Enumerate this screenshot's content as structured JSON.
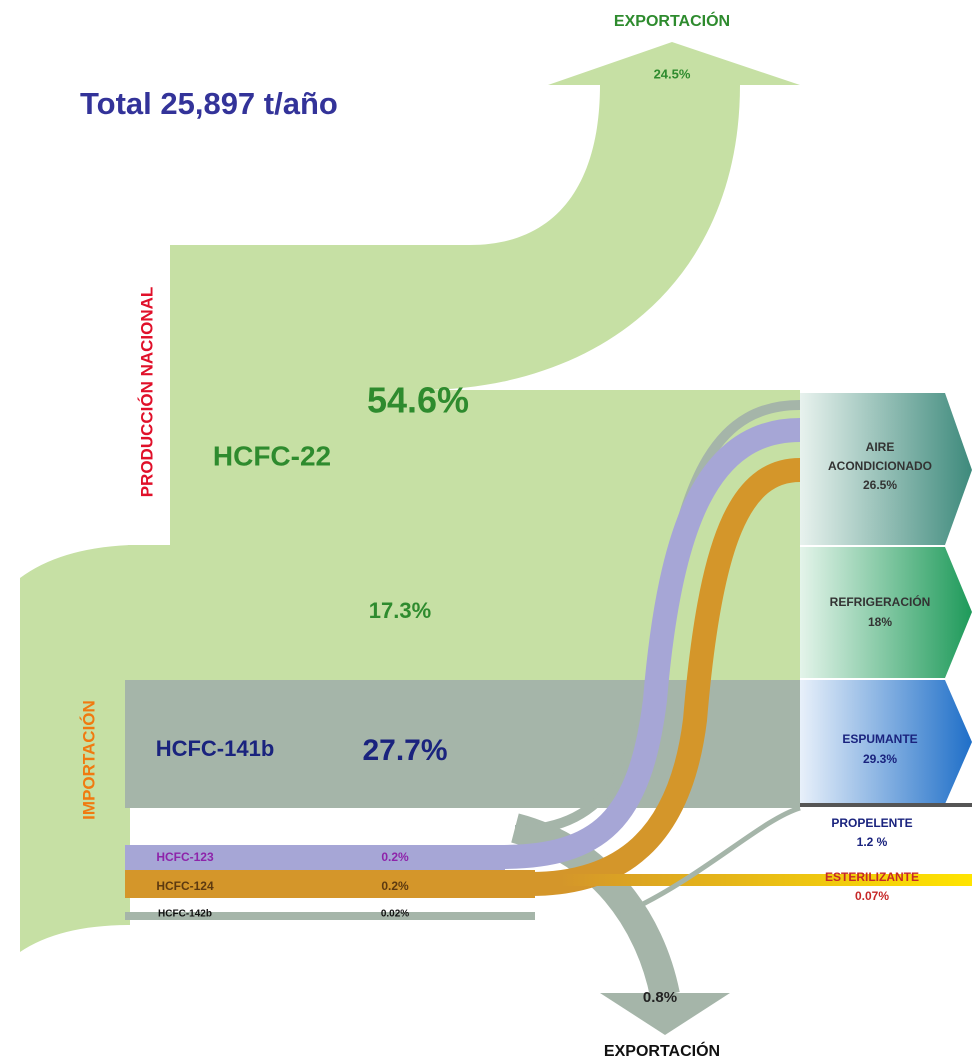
{
  "title": "Total 25,897 t/año",
  "exports": [
    {
      "label": "EXPORTACIÓN",
      "share": "24.5%"
    },
    {
      "label": "EXPORTACIÓN",
      "share": "0.8%"
    }
  ],
  "sources": [
    {
      "label": "PRODUCCIÓN NACIONAL"
    },
    {
      "label": "IMPORTACIÓN"
    }
  ],
  "substances": [
    {
      "name": "HCFC-22",
      "production_share": "54.6%",
      "import_share": "17.3%"
    },
    {
      "name": "HCFC-141b",
      "share": "27.7%"
    },
    {
      "name": "HCFC-123",
      "share": "0.2%"
    },
    {
      "name": "HCFC-124",
      "share": "0.2%"
    },
    {
      "name": "HCFC-142b",
      "share": "0.02%"
    }
  ],
  "uses": [
    {
      "label": [
        "AIRE",
        "ACONDICIONADO"
      ],
      "share": "26.5%"
    },
    {
      "label": [
        "REFRIGERACIÓN"
      ],
      "share": "18%"
    },
    {
      "label": [
        "ESPUMANTE"
      ],
      "share": "29.3%"
    },
    {
      "label": [
        "PROPELENTE"
      ],
      "share": "1.2 %"
    },
    {
      "label": [
        "ESTERILIZANTE"
      ],
      "share": "0.07%"
    }
  ]
}
